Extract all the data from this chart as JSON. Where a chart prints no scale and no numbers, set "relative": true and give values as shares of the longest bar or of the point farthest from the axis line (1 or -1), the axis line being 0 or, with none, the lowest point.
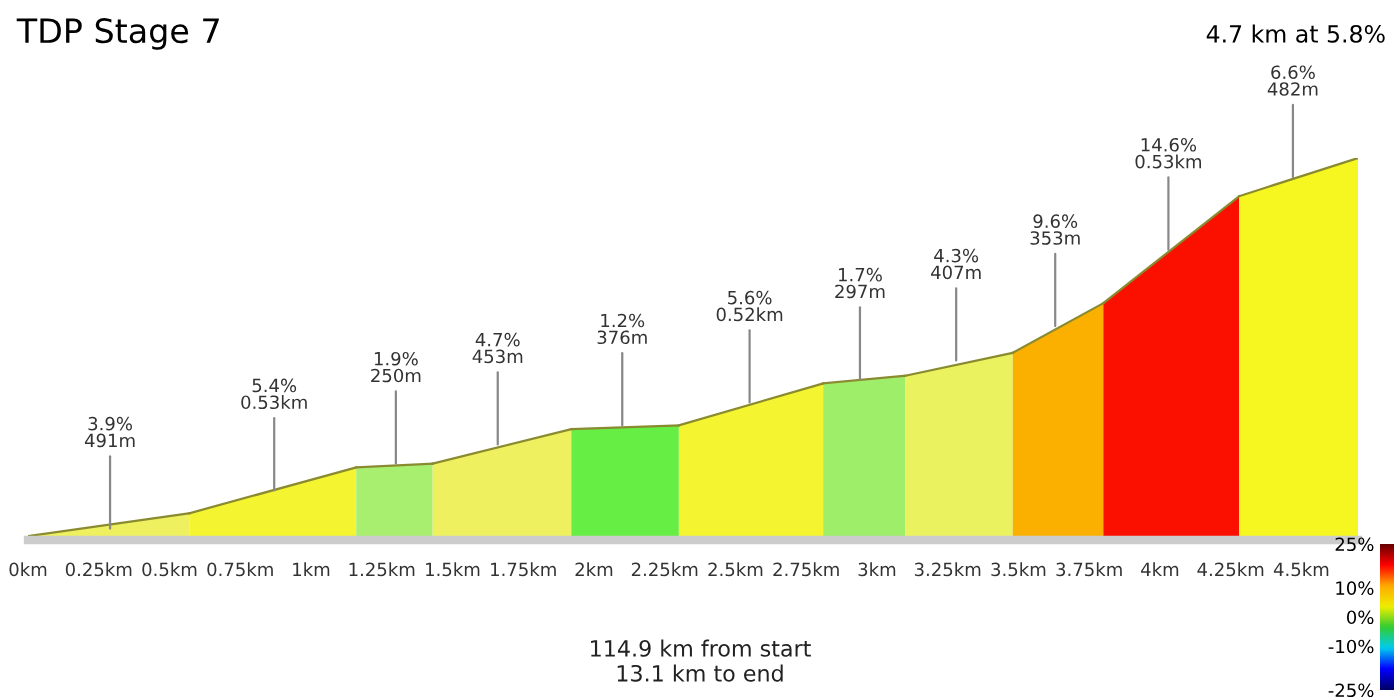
{
  "chart_data": {
    "type": "area",
    "title": "TDP Stage 7",
    "subtitle": "4.7 km at 5.8%",
    "relative": true,
    "xlim": [
      0,
      4.7
    ],
    "xticks": [
      {
        "value": 0,
        "label": "0km"
      },
      {
        "value": 0.25,
        "label": "0.25km"
      },
      {
        "value": 0.5,
        "label": "0.5km"
      },
      {
        "value": 0.75,
        "label": "0.75km"
      },
      {
        "value": 1,
        "label": "1km"
      },
      {
        "value": 1.25,
        "label": "1.25km"
      },
      {
        "value": 1.5,
        "label": "1.5km"
      },
      {
        "value": 1.75,
        "label": "1.75km"
      },
      {
        "value": 2,
        "label": "2km"
      },
      {
        "value": 2.25,
        "label": "2.25km"
      },
      {
        "value": 2.5,
        "label": "2.5km"
      },
      {
        "value": 2.75,
        "label": "2.75km"
      },
      {
        "value": 3,
        "label": "3km"
      },
      {
        "value": 3.25,
        "label": "3.25km"
      },
      {
        "value": 3.5,
        "label": "3.5km"
      },
      {
        "value": 3.75,
        "label": "3.75km"
      },
      {
        "value": 4,
        "label": "4km"
      },
      {
        "value": 4.25,
        "label": "4.25km"
      },
      {
        "value": 4.5,
        "label": "4.5km"
      }
    ],
    "series": [
      {
        "color": "#eef060",
        "x": [
          0,
          0.57
        ],
        "values": [
          0.01,
          0.07
        ]
      },
      {
        "color": "#f4f430",
        "x": [
          0.57,
          1.16
        ],
        "values": [
          0.07,
          0.19
        ]
      },
      {
        "color": "#a8ef70",
        "x": [
          1.16,
          1.43
        ],
        "values": [
          0.19,
          0.2
        ]
      },
      {
        "color": "#eef060",
        "x": [
          1.43,
          1.92
        ],
        "values": [
          0.2,
          0.29
        ]
      },
      {
        "color": "#66ee44",
        "x": [
          1.92,
          2.3
        ],
        "values": [
          0.29,
          0.3
        ]
      },
      {
        "color": "#f4f430",
        "x": [
          2.3,
          2.81
        ],
        "values": [
          0.3,
          0.41
        ]
      },
      {
        "color": "#9eee6a",
        "x": [
          2.81,
          3.1
        ],
        "values": [
          0.41,
          0.43
        ]
      },
      {
        "color": "#eaf260",
        "x": [
          3.1,
          3.48
        ],
        "values": [
          0.43,
          0.49
        ]
      },
      {
        "color": "#fbb000",
        "x": [
          3.48,
          3.8
        ],
        "values": [
          0.49,
          0.62
        ]
      },
      {
        "color": "#fb1000",
        "x": [
          3.8,
          4.28
        ],
        "values": [
          0.62,
          0.9
        ]
      },
      {
        "color": "#f6f620",
        "x": [
          4.28,
          4.7
        ],
        "values": [
          0.9,
          1.0
        ]
      }
    ],
    "annotations": [
      {
        "text": "3.9%\n491m",
        "x": 0.29,
        "y": 0.03
      },
      {
        "text": "5.4%\n0.53km",
        "x": 0.87,
        "y": 0.13
      },
      {
        "text": "1.9%\n250m",
        "x": 1.3,
        "y": 0.2
      },
      {
        "text": "4.7%\n453m",
        "x": 1.66,
        "y": 0.25
      },
      {
        "text": "1.2%\n376m",
        "x": 2.1,
        "y": 0.3
      },
      {
        "text": "5.6%\n0.52km",
        "x": 2.55,
        "y": 0.36
      },
      {
        "text": "1.7%\n297m",
        "x": 2.94,
        "y": 0.42
      },
      {
        "text": "4.3%\n407m",
        "x": 3.28,
        "y": 0.47
      },
      {
        "text": "9.6%\n353m",
        "x": 3.63,
        "y": 0.56
      },
      {
        "text": "14.6%\n0.53km",
        "x": 4.03,
        "y": 0.76
      },
      {
        "text": "6.6%\n482m",
        "x": 4.47,
        "y": 0.95
      },
      "114.9 km from start\n13.1 km to end"
    ],
    "clim": [
      -25,
      25
    ],
    "cticks": [
      {
        "value": 25,
        "label": "25%"
      },
      {
        "value": 10,
        "label": "10%"
      },
      {
        "value": 0,
        "label": "0%"
      },
      {
        "value": -10,
        "label": "-10%"
      },
      {
        "value": -25,
        "label": "-25%"
      }
    ]
  }
}
